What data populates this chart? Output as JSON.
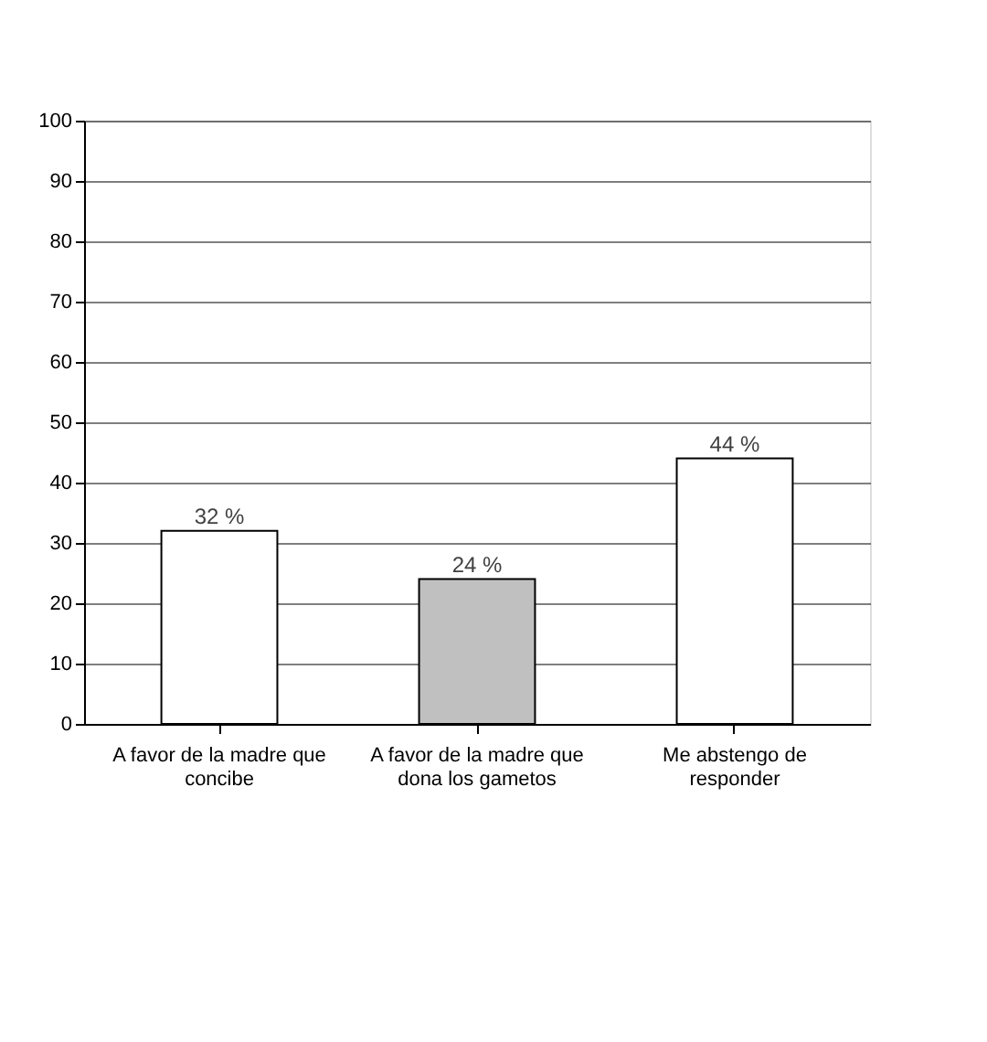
{
  "chart_data": {
    "type": "bar",
    "categories": [
      "A favor de la madre que concibe",
      "A favor de la madre que dona los gametos",
      "Me abstengo de responder"
    ],
    "values": [
      32,
      24,
      44
    ],
    "colors": [
      "#ffffff",
      "#c0c0c0",
      "#ffffff"
    ],
    "value_labels": [
      "32 %",
      "24 %",
      "44 %"
    ],
    "ylim": [
      0,
      100
    ],
    "yticks": [
      0,
      10,
      20,
      30,
      40,
      50,
      60,
      70,
      80,
      90,
      100
    ],
    "grid": "y"
  }
}
